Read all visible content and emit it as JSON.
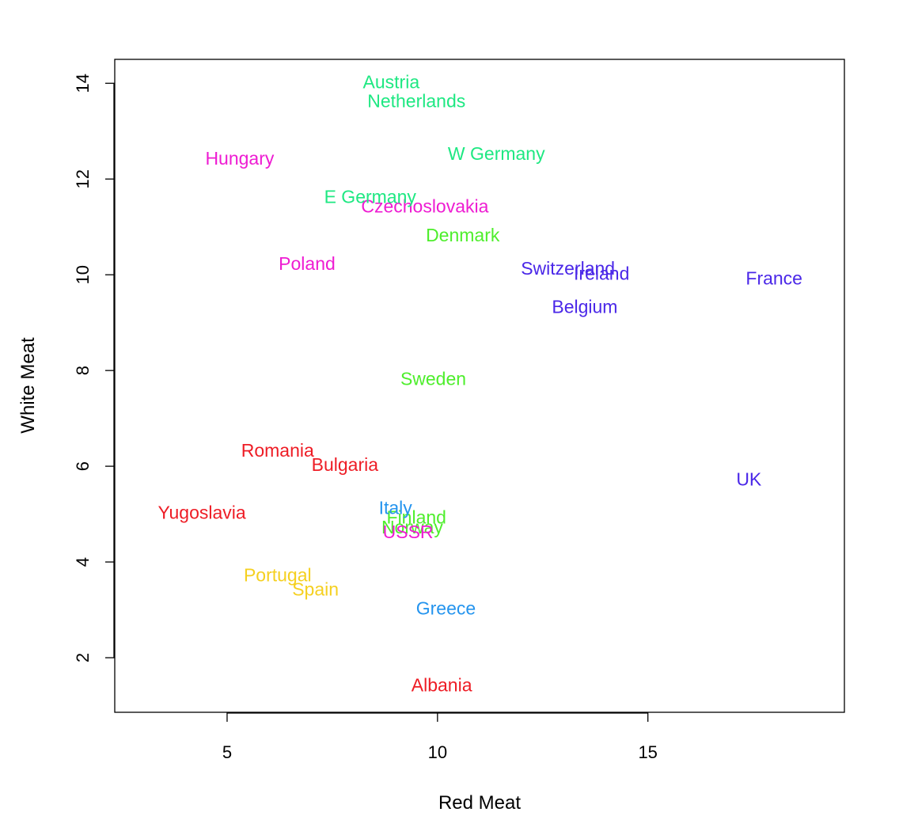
{
  "chart_data": {
    "type": "scatter",
    "title": "",
    "xlabel": "Red Meat",
    "ylabel": "White Meat",
    "xlim": [
      2.33,
      19.67
    ],
    "ylim": [
      0.86,
      14.5
    ],
    "x_ticks": [
      5,
      10,
      15
    ],
    "y_ticks": [
      2,
      4,
      6,
      8,
      10,
      12,
      14
    ],
    "grid": false,
    "legend": "none",
    "cluster_colors": {
      "red": "#ee1c25",
      "green": "#4eee2c",
      "teal": "#1ee882",
      "blue": "#2494ee",
      "purple": "#4a27e8",
      "magenta": "#ee1cd2",
      "yellow": "#f5d020"
    },
    "points": [
      {
        "label": "Albania",
        "x": 10.1,
        "y": 1.4,
        "cluster": "red"
      },
      {
        "label": "Austria",
        "x": 8.9,
        "y": 14.0,
        "cluster": "teal"
      },
      {
        "label": "Belgium",
        "x": 13.5,
        "y": 9.3,
        "cluster": "purple"
      },
      {
        "label": "Bulgaria",
        "x": 7.8,
        "y": 6.0,
        "cluster": "red"
      },
      {
        "label": "Czechoslovakia",
        "x": 9.7,
        "y": 11.4,
        "cluster": "magenta"
      },
      {
        "label": "Denmark",
        "x": 10.6,
        "y": 10.8,
        "cluster": "green"
      },
      {
        "label": "E Germany",
        "x": 8.4,
        "y": 11.6,
        "cluster": "teal"
      },
      {
        "label": "Finland",
        "x": 9.5,
        "y": 4.9,
        "cluster": "green"
      },
      {
        "label": "France",
        "x": 18.0,
        "y": 9.9,
        "cluster": "purple"
      },
      {
        "label": "Greece",
        "x": 10.2,
        "y": 3.0,
        "cluster": "blue"
      },
      {
        "label": "Hungary",
        "x": 5.3,
        "y": 12.4,
        "cluster": "magenta"
      },
      {
        "label": "Ireland",
        "x": 13.9,
        "y": 10.0,
        "cluster": "purple"
      },
      {
        "label": "Italy",
        "x": 9.0,
        "y": 5.1,
        "cluster": "blue"
      },
      {
        "label": "Netherlands",
        "x": 9.5,
        "y": 13.6,
        "cluster": "teal"
      },
      {
        "label": "Norway",
        "x": 9.4,
        "y": 4.7,
        "cluster": "green"
      },
      {
        "label": "Poland",
        "x": 6.9,
        "y": 10.2,
        "cluster": "magenta"
      },
      {
        "label": "Portugal",
        "x": 6.2,
        "y": 3.7,
        "cluster": "yellow"
      },
      {
        "label": "Romania",
        "x": 6.2,
        "y": 6.3,
        "cluster": "red"
      },
      {
        "label": "Spain",
        "x": 7.1,
        "y": 3.4,
        "cluster": "yellow"
      },
      {
        "label": "Sweden",
        "x": 9.9,
        "y": 7.8,
        "cluster": "green"
      },
      {
        "label": "Switzerland",
        "x": 13.1,
        "y": 10.1,
        "cluster": "purple"
      },
      {
        "label": "UK",
        "x": 17.4,
        "y": 5.7,
        "cluster": "purple"
      },
      {
        "label": "USSR",
        "x": 9.3,
        "y": 4.6,
        "cluster": "magenta"
      },
      {
        "label": "W Germany",
        "x": 11.4,
        "y": 12.5,
        "cluster": "teal"
      },
      {
        "label": "Yugoslavia",
        "x": 4.4,
        "y": 5.0,
        "cluster": "red"
      }
    ]
  }
}
